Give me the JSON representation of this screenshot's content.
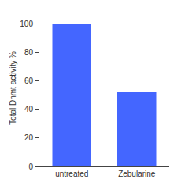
{
  "chart_data": {
    "type": "bar",
    "categories": [
      "untreated",
      "Zebularine"
    ],
    "values": [
      100,
      52
    ],
    "color": "#4466ff",
    "ylabel": "Total Dnmt activity %",
    "ylim": [
      0,
      110
    ],
    "yticks": [
      0,
      20,
      40,
      60,
      80,
      100
    ],
    "grid": false
  }
}
